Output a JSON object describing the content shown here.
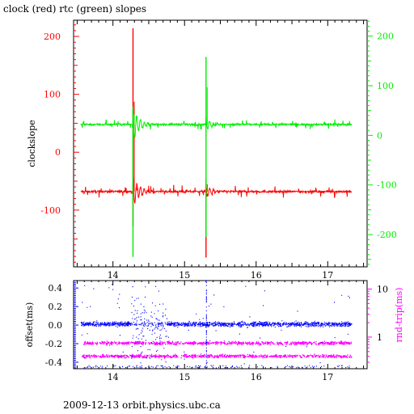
{
  "title": "clock (red) rtc (green) slopes",
  "footer": "2009-12-13 orbit.physics.ubc.ca",
  "colors": {
    "red": "#ff0000",
    "green": "#00ee00",
    "blue": "#0000ff",
    "magenta": "#ff00ff",
    "frame": "#000000"
  },
  "chart_data": [
    {
      "type": "line",
      "title": "clock (red) rtc (green) slopes",
      "xlabel": "",
      "ylabel": "clockslope",
      "y2label": "",
      "xlim": [
        13.45,
        17.55
      ],
      "ylim": [
        -198,
        228
      ],
      "y2lim": [
        -265,
        232
      ],
      "xticks": [
        14,
        15,
        16,
        17
      ],
      "yticks": [
        -100,
        0,
        100,
        200
      ],
      "y2ticks": [
        -200,
        -100,
        0,
        100,
        200
      ],
      "grid": false,
      "series": [
        {
          "color": "red",
          "axis": "left",
          "baseline": -68,
          "events": [
            {
              "x": 14.28,
              "min": -128,
              "max": 214,
              "after": 28
            },
            {
              "x": 15.3,
              "min": -182,
              "max": -45,
              "after": 10
            }
          ]
        },
        {
          "color": "green",
          "axis": "right",
          "baseline": 22,
          "events": [
            {
              "x": 14.28,
              "min": -245,
              "max": 58,
              "after": 35
            },
            {
              "x": 15.3,
              "min": -205,
              "max": 158,
              "after": 12
            }
          ]
        }
      ]
    },
    {
      "type": "scatter",
      "xlabel": "",
      "ylabel": "offset(ms)",
      "y2label": "rnd-trip(ms)",
      "xlim": [
        13.45,
        17.55
      ],
      "ylim": [
        -0.47,
        0.48
      ],
      "y2lim": [
        0.22,
        15
      ],
      "y2scale": "log",
      "xticks": [
        14,
        15,
        16,
        17
      ],
      "yticks": [
        -0.4,
        -0.2,
        0,
        0.2,
        0.4
      ],
      "y2ticks": [
        1,
        10
      ],
      "grid": false,
      "series": [
        {
          "color": "blue",
          "axis": "left",
          "center": 0.01
        },
        {
          "color": "magenta",
          "axis": "right",
          "levels": [
            0.4,
            0.75
          ]
        }
      ]
    }
  ]
}
